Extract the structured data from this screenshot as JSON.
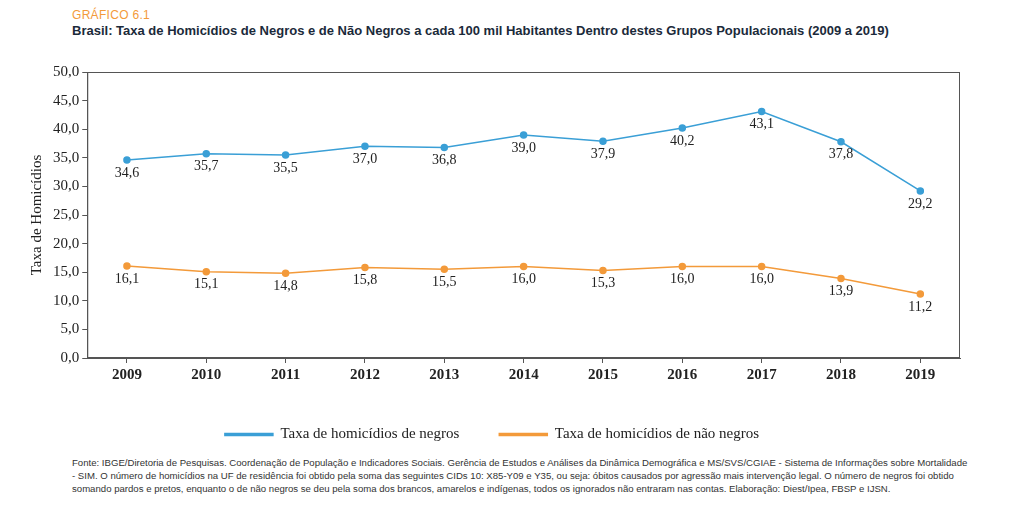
{
  "figure_label": "GRÁFICO 6.1",
  "chart_data": {
    "type": "line",
    "title": "Brasil: Taxa de Homicídios de Negros e de Não Negros a cada 100 mil Habitantes Dentro destes Grupos Populacionais (2009 a 2019)",
    "y_label": "Taxa de Homicídios",
    "categories": [
      "2009",
      "2010",
      "2011",
      "2012",
      "2013",
      "2014",
      "2015",
      "2016",
      "2017",
      "2018",
      "2019"
    ],
    "series": [
      {
        "name": "Taxa de homicídios de negros",
        "color": "#3a9fd6",
        "marker": "circle",
        "line_style": "solid",
        "values": [
          34.6,
          35.7,
          35.5,
          37.0,
          36.8,
          39.0,
          37.9,
          40.2,
          43.1,
          37.8,
          29.2
        ],
        "value_labels": [
          "34,6",
          "35,7",
          "35,5",
          "37,0",
          "36,8",
          "39,0",
          "37,9",
          "40,2",
          "43,1",
          "37,8",
          "29,2"
        ]
      },
      {
        "name": "Taxa de homicídios de não negros",
        "color": "#f39a3a",
        "marker": "circle",
        "line_style": "solid",
        "values": [
          16.1,
          15.1,
          14.8,
          15.8,
          15.5,
          16.0,
          15.3,
          16.0,
          16.0,
          13.9,
          11.2
        ],
        "value_labels": [
          "16,1",
          "15,1",
          "14,8",
          "15,8",
          "15,5",
          "16,0",
          "15,3",
          "16,0",
          "16,0",
          "13,9",
          "11,2"
        ]
      }
    ],
    "ylim": [
      0,
      50
    ],
    "yticks": [
      {
        "value": 0,
        "label": "0,0"
      },
      {
        "value": 5,
        "label": "5,0"
      },
      {
        "value": 10,
        "label": "10,0"
      },
      {
        "value": 15,
        "label": "15,0"
      },
      {
        "value": 20,
        "label": "20,0"
      },
      {
        "value": 25,
        "label": "25,0"
      },
      {
        "value": 30,
        "label": "30,0"
      },
      {
        "value": 35,
        "label": "35,0"
      },
      {
        "value": 40,
        "label": "40,0"
      },
      {
        "value": 45,
        "label": "45,0"
      },
      {
        "value": 50,
        "label": "50,0"
      }
    ],
    "grid": false,
    "legend": "bottom",
    "data_labels": true
  },
  "source_note": "Fonte: IBGE/Diretoria de Pesquisas. Coordenação de População e Indicadores Sociais. Gerência de Estudos e Análises da Dinâmica Demográfica e MS/SVS/CGIAE - Sistema de Informações sobre Mortalidade - SIM. O número de homicídios na UF de residência foi obtido pela soma das seguintes CIDs 10: X85-Y09 e Y35, ou seja: óbitos causados por agressão mais intervenção legal. O número de negros foi obtido somando pardos e pretos, enquanto o de não negros se deu pela soma dos brancos, amarelos e indígenas, todos os ignorados não entraram nas contas. Elaboração: Diest/Ipea, FBSP e IJSN."
}
